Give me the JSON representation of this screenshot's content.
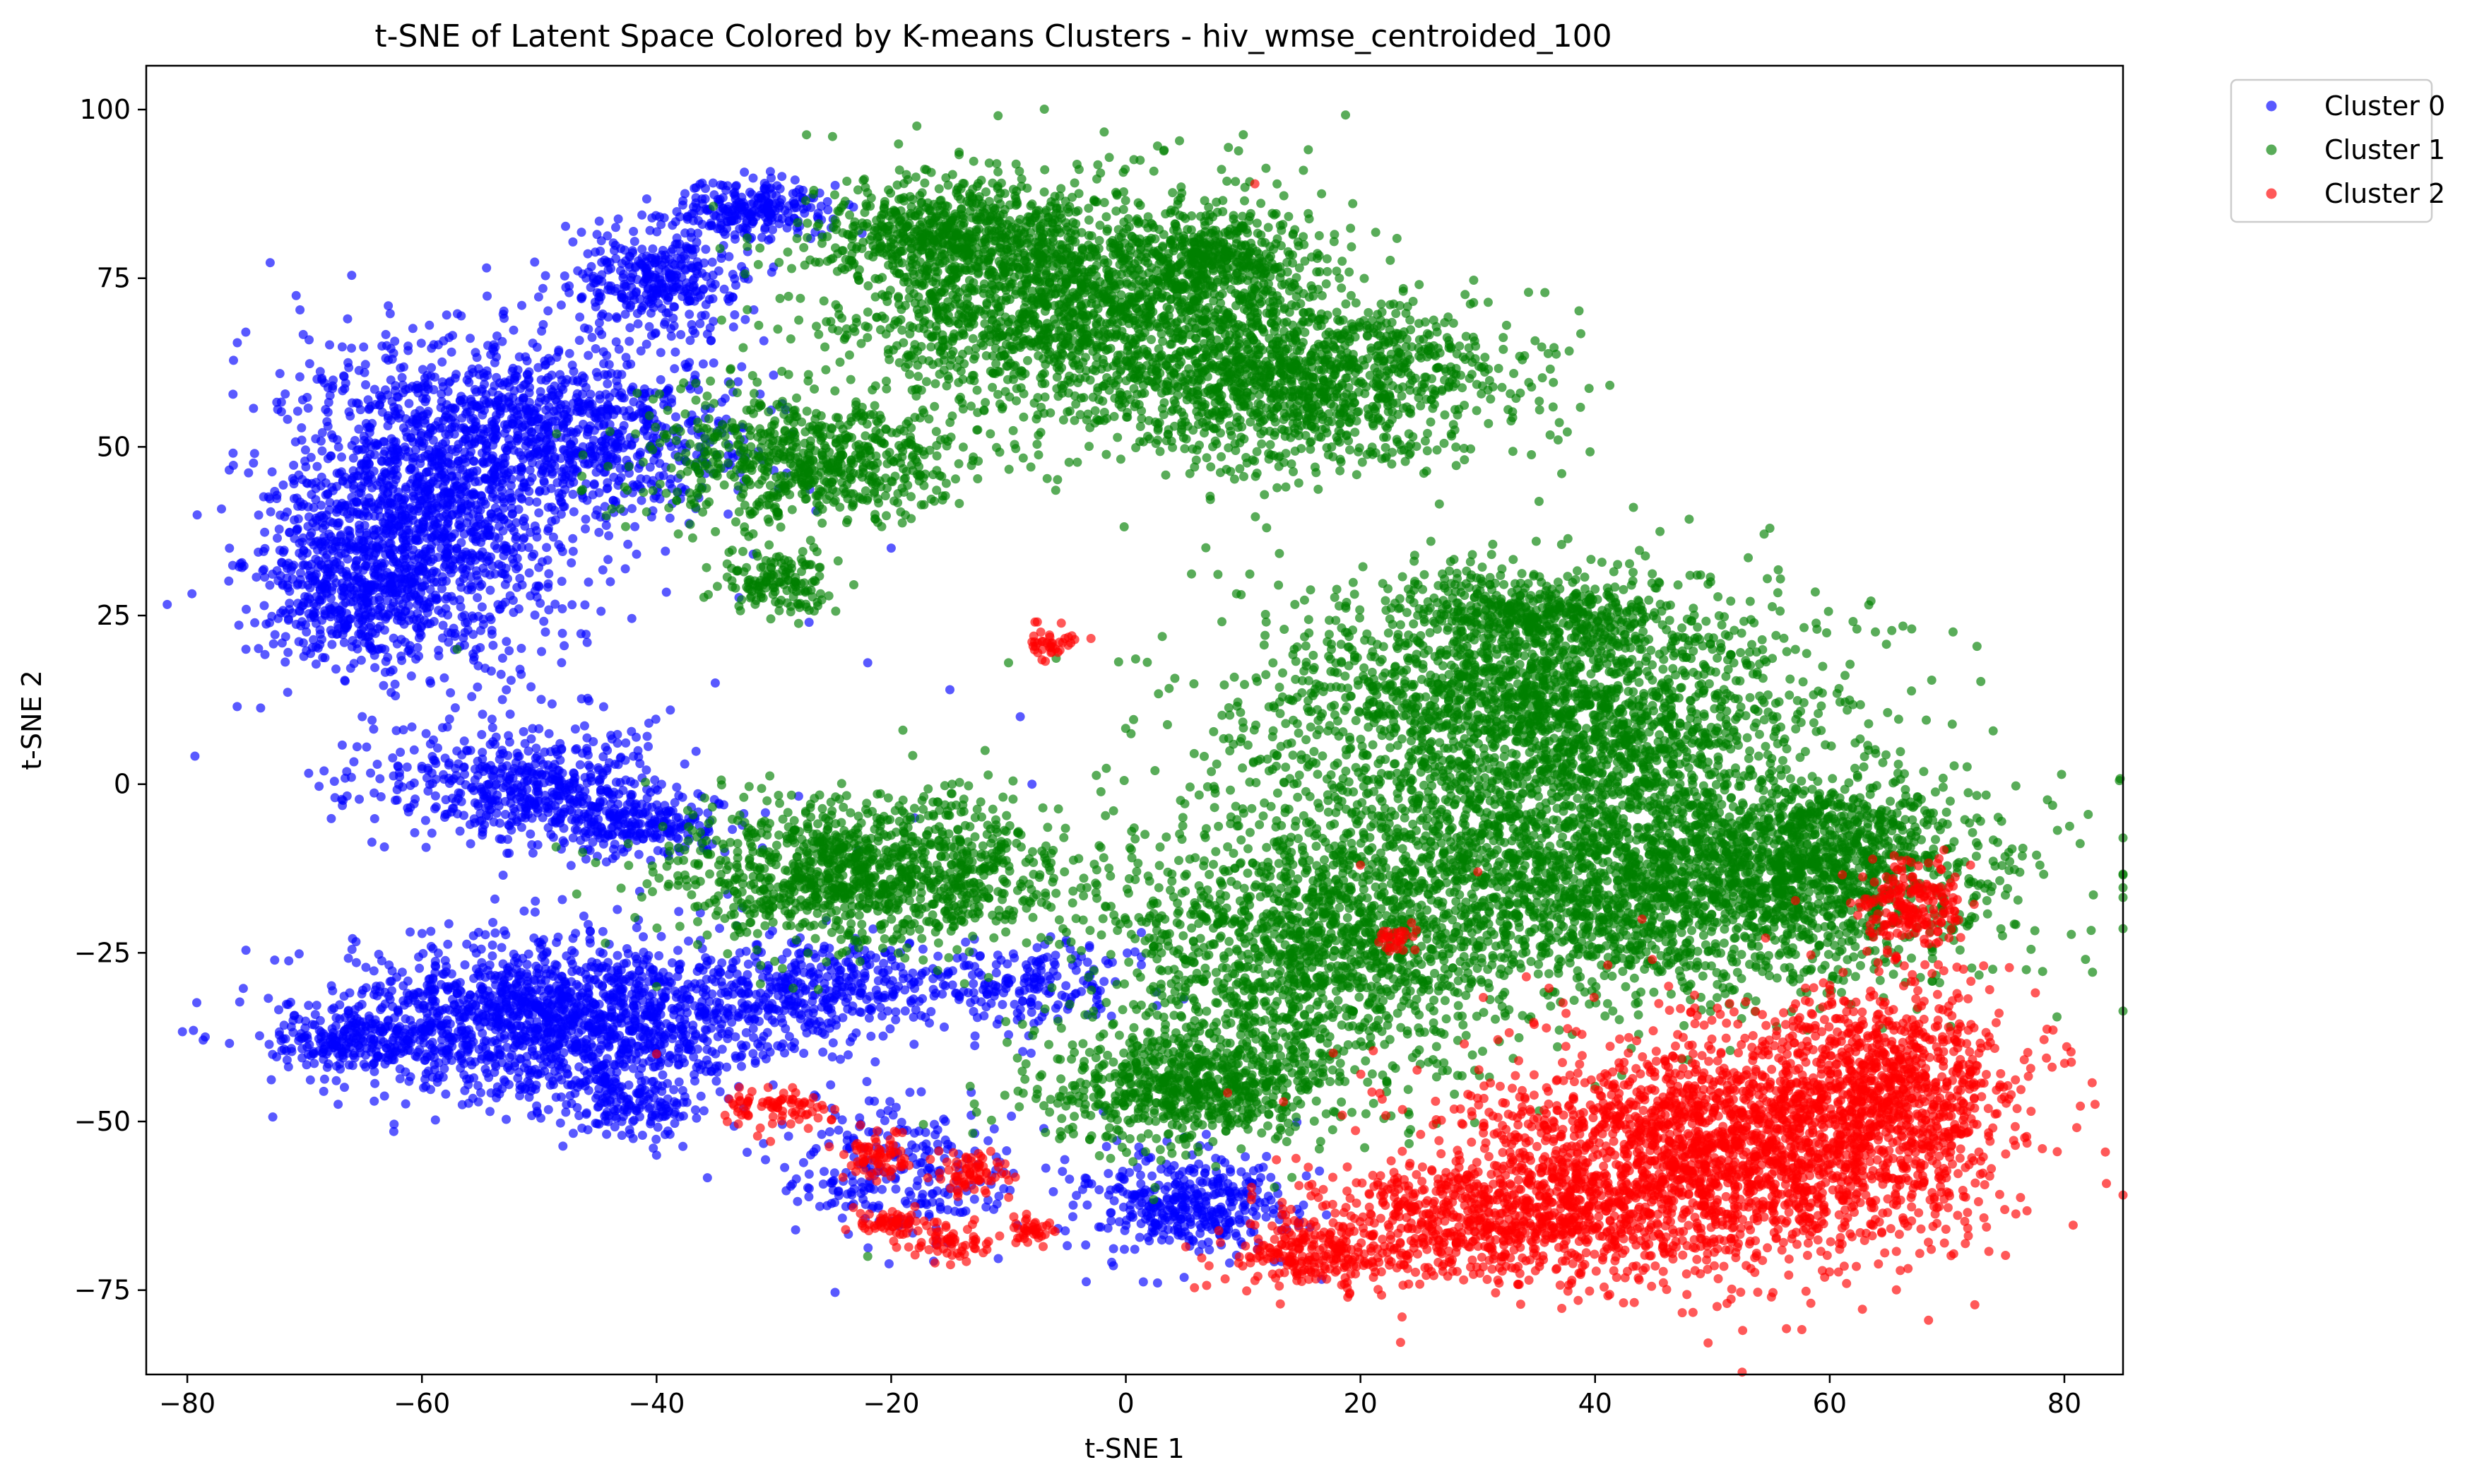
{
  "chart_data": {
    "type": "scatter",
    "title": "t-SNE of Latent Space Colored by K-means Clusters - hiv_wmse_centroided_100",
    "xlabel": "t-SNE 1",
    "ylabel": "t-SNE 2",
    "xlim": [
      -83.5,
      85
    ],
    "ylim": [
      -87.5,
      106.5
    ],
    "xticks": [
      -80,
      -60,
      -40,
      -20,
      0,
      20,
      40,
      60,
      80
    ],
    "xtick_labels": [
      "−80",
      "−60",
      "−40",
      "−20",
      "0",
      "20",
      "40",
      "60",
      "80"
    ],
    "yticks": [
      -75,
      -50,
      -25,
      0,
      25,
      50,
      75,
      100
    ],
    "ytick_labels": [
      "−75",
      "−50",
      "−25",
      "0",
      "25",
      "50",
      "75",
      "100"
    ],
    "grid": false,
    "legend_position": "outside-top-right",
    "marker_alpha": 0.65,
    "series": [
      {
        "name": "Cluster 0",
        "color": "#0000ff",
        "regions": [
          {
            "cx": -60,
            "cy": 40,
            "rx": 12,
            "ry": 22,
            "n": 1400
          },
          {
            "cx": -48,
            "cy": 52,
            "rx": 14,
            "ry": 12,
            "n": 900
          },
          {
            "cx": -66,
            "cy": 28,
            "rx": 7,
            "ry": 10,
            "n": 400
          },
          {
            "cx": -40,
            "cy": 75,
            "rx": 7,
            "ry": 7,
            "n": 350
          },
          {
            "cx": -32,
            "cy": 85,
            "rx": 6,
            "ry": 4,
            "n": 250
          },
          {
            "cx": -52,
            "cy": 0,
            "rx": 12,
            "ry": 7,
            "n": 500
          },
          {
            "cx": -42,
            "cy": -6,
            "rx": 8,
            "ry": 5,
            "n": 250
          },
          {
            "cx": -48,
            "cy": -35,
            "rx": 18,
            "ry": 11,
            "n": 1700
          },
          {
            "cx": -66,
            "cy": -38,
            "rx": 6,
            "ry": 4,
            "n": 200
          },
          {
            "cx": -26,
            "cy": -30,
            "rx": 10,
            "ry": 6,
            "n": 300
          },
          {
            "cx": 5,
            "cy": -62,
            "rx": 8,
            "ry": 7,
            "n": 400
          },
          {
            "cx": -20,
            "cy": -58,
            "rx": 10,
            "ry": 10,
            "n": 250
          },
          {
            "cx": -8,
            "cy": -30,
            "rx": 8,
            "ry": 6,
            "n": 200
          },
          {
            "cx": -42,
            "cy": -48,
            "rx": 5,
            "ry": 4,
            "n": 120
          }
        ],
        "stray_points": [
          [
            -75,
            20
          ],
          [
            -72,
            -38
          ],
          [
            -63,
            65
          ],
          [
            -27,
            24
          ],
          [
            -22,
            18
          ],
          [
            -15,
            14
          ],
          [
            -40,
            -55
          ],
          [
            -8,
            0
          ],
          [
            -35,
            15
          ],
          [
            -20,
            35
          ],
          [
            -9,
            10
          ],
          [
            -18,
            -5
          ]
        ]
      },
      {
        "name": "Cluster 1",
        "color": "#008000",
        "regions": [
          {
            "cx": -5,
            "cy": 72,
            "rx": 18,
            "ry": 15,
            "n": 1800
          },
          {
            "cx": 15,
            "cy": 60,
            "rx": 16,
            "ry": 12,
            "n": 1300
          },
          {
            "cx": -15,
            "cy": 82,
            "rx": 10,
            "ry": 7,
            "n": 500
          },
          {
            "cx": 8,
            "cy": 78,
            "rx": 6,
            "ry": 6,
            "n": 300
          },
          {
            "cx": -28,
            "cy": 48,
            "rx": 13,
            "ry": 9,
            "n": 700
          },
          {
            "cx": 35,
            "cy": 10,
            "rx": 22,
            "ry": 18,
            "n": 2400
          },
          {
            "cx": 45,
            "cy": -15,
            "rx": 25,
            "ry": 15,
            "n": 2400
          },
          {
            "cx": 15,
            "cy": -25,
            "rx": 15,
            "ry": 18,
            "n": 1400
          },
          {
            "cx": -22,
            "cy": -13,
            "rx": 15,
            "ry": 10,
            "n": 1200
          },
          {
            "cx": 5,
            "cy": -45,
            "rx": 12,
            "ry": 8,
            "n": 700
          },
          {
            "cx": 60,
            "cy": -10,
            "rx": 10,
            "ry": 10,
            "n": 600
          },
          {
            "cx": 35,
            "cy": 25,
            "rx": 10,
            "ry": 5,
            "n": 400
          },
          {
            "cx": -30,
            "cy": 30,
            "rx": 5,
            "ry": 4,
            "n": 150
          }
        ],
        "stray_points": [
          [
            -22,
            -70
          ],
          [
            -12,
            5
          ],
          [
            -19,
            8
          ],
          [
            -10,
            18
          ],
          [
            12,
            38
          ],
          [
            -57,
            20
          ],
          [
            -40,
            -30
          ],
          [
            -25,
            96
          ],
          [
            26,
            36
          ],
          [
            50,
            20
          ]
        ]
      },
      {
        "name": "Cluster 2",
        "color": "#ff0000",
        "regions": [
          {
            "cx": 50,
            "cy": -55,
            "rx": 20,
            "ry": 16,
            "n": 2300
          },
          {
            "cx": 65,
            "cy": -45,
            "rx": 10,
            "ry": 14,
            "n": 800
          },
          {
            "cx": 30,
            "cy": -65,
            "rx": 14,
            "ry": 8,
            "n": 700
          },
          {
            "cx": 67,
            "cy": -18,
            "rx": 4,
            "ry": 6,
            "n": 200
          },
          {
            "cx": 15,
            "cy": -70,
            "rx": 7,
            "ry": 4,
            "n": 200
          },
          {
            "cx": -30,
            "cy": -48,
            "rx": 4,
            "ry": 3,
            "n": 80
          },
          {
            "cx": -21,
            "cy": -55,
            "rx": 3,
            "ry": 3,
            "n": 70
          },
          {
            "cx": -13,
            "cy": -58,
            "rx": 3,
            "ry": 3,
            "n": 70
          },
          {
            "cx": -20,
            "cy": -65,
            "rx": 3,
            "ry": 2,
            "n": 60
          },
          {
            "cx": -15,
            "cy": -68,
            "rx": 3,
            "ry": 2,
            "n": 60
          },
          {
            "cx": -8,
            "cy": -66,
            "rx": 2,
            "ry": 2,
            "n": 40
          },
          {
            "cx": -6,
            "cy": 21,
            "rx": 2,
            "ry": 2,
            "n": 40
          },
          {
            "cx": 23,
            "cy": -23,
            "rx": 1.5,
            "ry": 2,
            "n": 30
          }
        ],
        "stray_points": [
          [
            11,
            89
          ],
          [
            30,
            -13
          ],
          [
            44,
            -20
          ],
          [
            63,
            -17
          ],
          [
            72,
            -12
          ],
          [
            20,
            -12
          ],
          [
            -40,
            -40
          ]
        ]
      }
    ]
  }
}
